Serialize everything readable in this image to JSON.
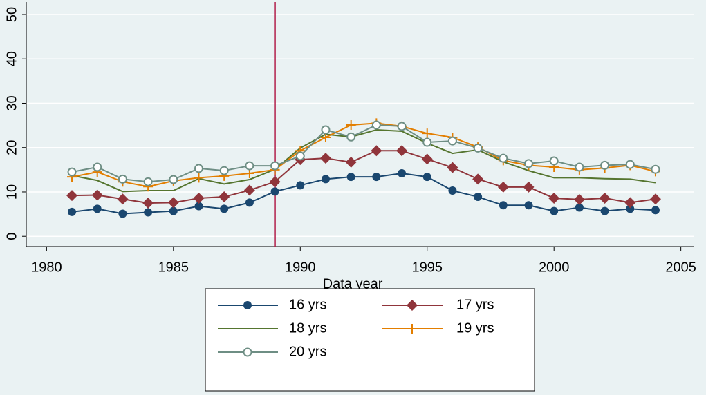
{
  "chart_data": {
    "type": "line",
    "x_label": "Data year",
    "x": [
      1981,
      1982,
      1983,
      1984,
      1985,
      1986,
      1987,
      1988,
      1989,
      1990,
      1991,
      1992,
      1993,
      1994,
      1995,
      1996,
      1997,
      1998,
      1999,
      2000,
      2001,
      2002,
      2003,
      2004
    ],
    "series": [
      {
        "name": "16 yrs",
        "color": "#1a476f",
        "marker": "circle",
        "values": [
          5.5,
          6.2,
          5.1,
          5.4,
          5.7,
          6.8,
          6.2,
          7.6,
          10.1,
          11.5,
          12.9,
          13.4,
          13.4,
          14.2,
          13.4,
          10.3,
          8.9,
          7.0,
          7.0,
          5.7,
          6.5,
          5.7,
          6.2,
          5.9
        ]
      },
      {
        "name": "17 yrs",
        "color": "#90353b",
        "marker": "diamond",
        "values": [
          9.2,
          9.3,
          8.4,
          7.5,
          7.6,
          8.6,
          8.9,
          10.4,
          12.3,
          17.3,
          17.6,
          16.7,
          19.3,
          19.3,
          17.4,
          15.5,
          12.9,
          11.1,
          11.1,
          8.6,
          8.3,
          8.6,
          7.6,
          8.4
        ]
      },
      {
        "name": "18 yrs",
        "color": "#55752f",
        "marker": "none",
        "values": [
          13.7,
          12.6,
          10.1,
          10.3,
          10.3,
          13.0,
          11.8,
          12.8,
          15.1,
          19.9,
          23.0,
          22.4,
          24.0,
          23.7,
          21.0,
          18.7,
          19.5,
          16.8,
          14.8,
          13.2,
          13.2,
          13.0,
          12.9,
          12.1
        ]
      },
      {
        "name": "19 yrs",
        "color": "#e37e00",
        "marker": "plus",
        "values": [
          13.4,
          14.5,
          12.3,
          11.2,
          12.5,
          13.2,
          13.6,
          14.2,
          15.0,
          19.3,
          22.3,
          25.1,
          25.5,
          24.8,
          23.2,
          22.3,
          20.1,
          17.1,
          16.0,
          15.6,
          15.0,
          15.4,
          16.0,
          14.6
        ]
      },
      {
        "name": "20 yrs",
        "color": "#6e8e84",
        "marker": "hollow-circle",
        "values": [
          14.5,
          15.6,
          12.9,
          12.3,
          12.8,
          15.3,
          14.8,
          15.9,
          15.9,
          18.1,
          24.0,
          22.4,
          25.1,
          24.8,
          21.2,
          21.5,
          19.9,
          17.6,
          16.4,
          17.0,
          15.6,
          16.0,
          16.2,
          15.1
        ]
      }
    ],
    "xlim": [
      1979.2,
      2005.5
    ],
    "xticks": [
      1980,
      1985,
      1990,
      1995,
      2000,
      2005
    ],
    "ylim": [
      -2.3,
      52.8
    ],
    "yticks": [
      0,
      10,
      20,
      30,
      40,
      50
    ],
    "grid": true,
    "xline": {
      "value": 1989,
      "color": "#b2204c"
    },
    "legend": "bottom"
  }
}
